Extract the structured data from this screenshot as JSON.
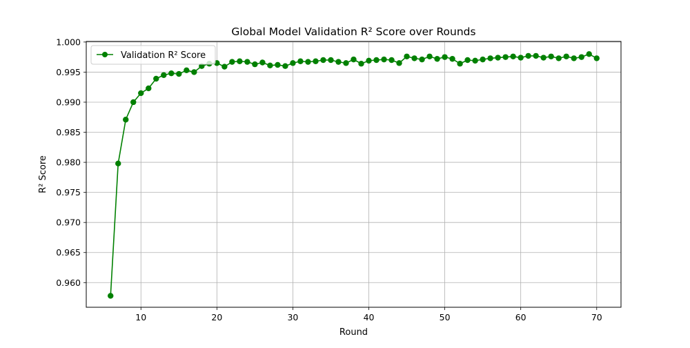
{
  "chart_data": {
    "type": "line",
    "title": "Global Model Validation R² Score over Rounds",
    "xlabel": "Round",
    "ylabel": "R² Score",
    "xlim": [
      2.8,
      73.2
    ],
    "ylim": [
      0.9559,
      1.0001
    ],
    "x_ticks": [
      10,
      20,
      30,
      40,
      50,
      60,
      70
    ],
    "y_ticks": [
      0.96,
      0.965,
      0.97,
      0.975,
      0.98,
      0.985,
      0.99,
      0.995,
      1.0
    ],
    "x_tick_labels": [
      "10",
      "20",
      "30",
      "40",
      "50",
      "60",
      "70"
    ],
    "y_tick_labels": [
      "0.960",
      "0.965",
      "0.970",
      "0.975",
      "0.980",
      "0.985",
      "0.990",
      "0.995",
      "1.000"
    ],
    "grid": true,
    "legend_position": "top-left",
    "series": [
      {
        "name": "Validation R² Score",
        "color": "#008000",
        "marker": "circle",
        "x": [
          6,
          7,
          8,
          9,
          10,
          11,
          12,
          13,
          14,
          15,
          16,
          17,
          18,
          19,
          20,
          21,
          22,
          23,
          24,
          25,
          26,
          27,
          28,
          29,
          30,
          31,
          32,
          33,
          34,
          35,
          36,
          37,
          38,
          39,
          40,
          41,
          42,
          43,
          44,
          45,
          46,
          47,
          48,
          49,
          50,
          51,
          52,
          53,
          54,
          55,
          56,
          57,
          58,
          59,
          60,
          61,
          62,
          63,
          64,
          65,
          66,
          67,
          68,
          69,
          70
        ],
        "values": [
          0.9578,
          0.9798,
          0.9871,
          0.99,
          0.9915,
          0.9923,
          0.9939,
          0.9945,
          0.9948,
          0.9947,
          0.9953,
          0.995,
          0.996,
          0.9964,
          0.9965,
          0.9959,
          0.9967,
          0.9968,
          0.9967,
          0.9963,
          0.9966,
          0.9961,
          0.9962,
          0.996,
          0.9965,
          0.9968,
          0.9967,
          0.9968,
          0.997,
          0.997,
          0.9967,
          0.9965,
          0.9971,
          0.9964,
          0.9969,
          0.997,
          0.9971,
          0.997,
          0.9965,
          0.9976,
          0.9973,
          0.9971,
          0.9976,
          0.9972,
          0.9975,
          0.9972,
          0.9964,
          0.997,
          0.9969,
          0.9971,
          0.9973,
          0.9974,
          0.9975,
          0.9976,
          0.9974,
          0.9977,
          0.9977,
          0.9974,
          0.9976,
          0.9973,
          0.9976,
          0.9973,
          0.9975,
          0.998,
          0.9973
        ]
      }
    ]
  }
}
